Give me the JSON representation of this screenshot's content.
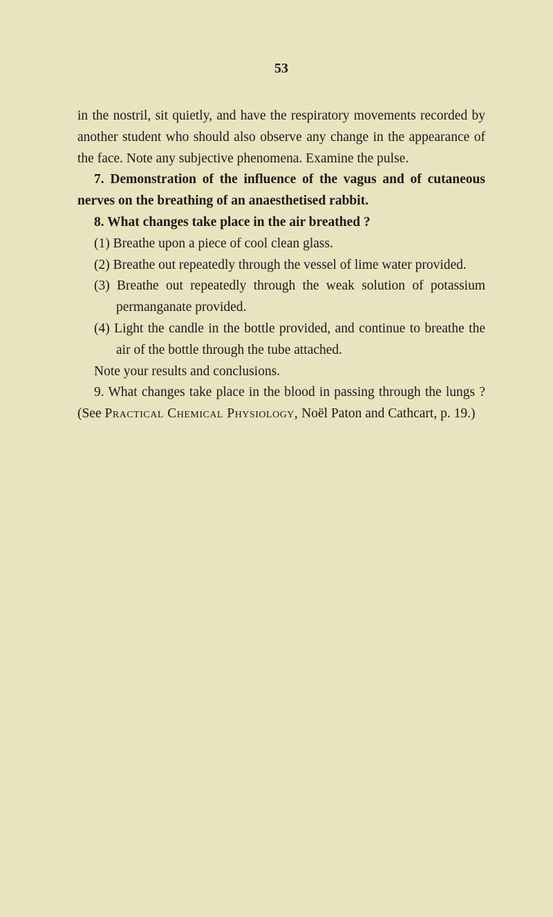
{
  "page_number": "53",
  "para1": "in the nostril, sit quietly, and have the respiratory movements recorded by another student who should also observe any change in the appearance of the face. Note any subjective phenomena. Examine the pulse.",
  "item7_bold_a": "7. Demonstration of the influence of the vagus and of cutaneous nerves on the breathing of an anaesthetised rabbit.",
  "item8_bold": "8. What changes take place in the air breathed ?",
  "sub1": "(1) Breathe upon a piece of cool clean glass.",
  "sub2": "(2) Breathe out repeatedly through the vessel of lime water provided.",
  "sub3": "(3) Breathe out repeatedly through the weak solution of potassium permanganate provided.",
  "sub4": "(4) Light the candle in the bottle provided, and continue to breathe the air of the bottle through the tube attached.",
  "note": "Note your results and conclusions.",
  "item9_a": "9. What changes take place in the blood in passing through the lungs ?  (See ",
  "item9_sc": "Practical Chemical Physiology,",
  "item9_b": " Noël Paton and Cathcart, p. 19.)"
}
